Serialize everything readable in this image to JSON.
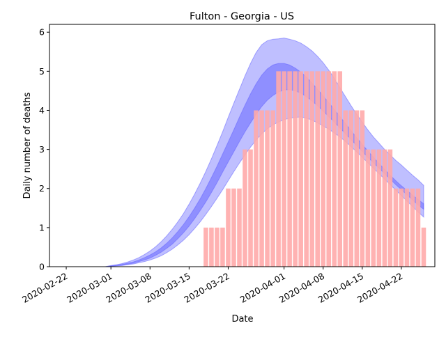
{
  "chart_data": {
    "type": "bar",
    "title": "Fulton - Georgia - US",
    "xlabel": "Date",
    "ylabel": "Daily number of deaths",
    "xlim": [
      "2020-02-19",
      "2020-04-28"
    ],
    "ylim": [
      0,
      6.2
    ],
    "yticks": [
      0,
      1,
      2,
      3,
      4,
      5,
      6
    ],
    "xticks": [
      "2020-02-22",
      "2020-03-01",
      "2020-03-08",
      "2020-03-15",
      "2020-03-22",
      "2020-04-01",
      "2020-04-08",
      "2020-04-15",
      "2020-04-22"
    ],
    "grid": false,
    "legend": "none",
    "colors": {
      "bars": "#ffaaaa",
      "band": "#0000ff",
      "band_edge": "#6666ff"
    },
    "bars": {
      "start_date": "2020-03-18",
      "values": [
        1,
        1,
        1,
        1,
        2,
        2,
        2,
        3,
        3,
        4,
        4,
        4,
        4,
        5,
        5,
        5,
        5,
        5,
        5,
        5,
        5,
        5,
        5,
        5,
        5,
        4,
        4,
        4,
        4,
        3,
        3,
        3,
        3,
        3,
        2,
        2,
        2,
        2,
        2,
        1
      ]
    },
    "bands": {
      "start_date": "2020-02-19",
      "outer": {
        "lower": [
          0,
          0,
          0,
          0,
          0,
          0,
          0,
          0,
          0,
          0,
          0,
          0.01,
          0.02,
          0.03,
          0.05,
          0.07,
          0.1,
          0.13,
          0.17,
          0.22,
          0.28,
          0.36,
          0.45,
          0.56,
          0.68,
          0.82,
          0.98,
          1.15,
          1.34,
          1.54,
          1.75,
          1.97,
          2.2,
          2.43,
          2.65,
          2.86,
          3.06,
          3.24,
          3.4,
          3.53,
          3.63,
          3.7,
          3.76,
          3.8,
          3.82,
          3.83,
          3.8,
          3.75,
          3.68,
          3.6,
          3.52,
          3.42,
          3.32,
          3.2,
          3.07,
          2.94,
          2.8,
          2.66,
          2.52,
          2.38,
          2.24,
          2.1,
          1.96,
          1.82,
          1.68,
          1.54,
          1.4,
          1.27
        ],
        "upper": [
          0,
          0,
          0,
          0,
          0,
          0,
          0,
          0,
          0,
          0,
          0,
          0.03,
          0.05,
          0.08,
          0.12,
          0.17,
          0.23,
          0.31,
          0.4,
          0.51,
          0.64,
          0.79,
          0.96,
          1.15,
          1.36,
          1.6,
          1.86,
          2.14,
          2.44,
          2.76,
          3.1,
          3.45,
          3.82,
          4.18,
          4.53,
          4.88,
          5.2,
          5.48,
          5.68,
          5.78,
          5.82,
          5.83,
          5.85,
          5.82,
          5.78,
          5.72,
          5.63,
          5.52,
          5.38,
          5.22,
          5.03,
          4.82,
          4.58,
          4.35,
          4.12,
          3.9,
          3.7,
          3.5,
          3.32,
          3.16,
          3.0,
          2.86,
          2.72,
          2.6,
          2.47,
          2.34,
          2.22,
          2.08
        ]
      },
      "inner": {
        "lower": [
          0,
          0,
          0,
          0,
          0,
          0,
          0,
          0,
          0,
          0,
          0,
          0.01,
          0.03,
          0.04,
          0.06,
          0.09,
          0.13,
          0.17,
          0.22,
          0.29,
          0.37,
          0.47,
          0.58,
          0.72,
          0.87,
          1.04,
          1.23,
          1.44,
          1.66,
          1.9,
          2.15,
          2.42,
          2.68,
          2.94,
          3.2,
          3.45,
          3.68,
          3.9,
          4.1,
          4.26,
          4.38,
          4.47,
          4.52,
          4.53,
          4.5,
          4.44,
          4.35,
          4.24,
          4.12,
          3.98,
          3.84,
          3.7,
          3.55,
          3.4,
          3.25,
          3.1,
          2.95,
          2.8,
          2.66,
          2.52,
          2.38,
          2.24,
          2.1,
          1.97,
          1.84,
          1.71,
          1.58,
          1.47
        ],
        "upper": [
          0,
          0,
          0,
          0,
          0,
          0,
          0,
          0,
          0,
          0,
          0,
          0.02,
          0.04,
          0.06,
          0.09,
          0.12,
          0.17,
          0.23,
          0.3,
          0.38,
          0.48,
          0.6,
          0.74,
          0.9,
          1.08,
          1.28,
          1.5,
          1.74,
          2.0,
          2.28,
          2.57,
          2.88,
          3.19,
          3.5,
          3.82,
          4.13,
          4.42,
          4.68,
          4.9,
          5.06,
          5.16,
          5.2,
          5.2,
          5.16,
          5.08,
          4.98,
          4.85,
          4.7,
          4.54,
          4.37,
          4.2,
          4.02,
          3.84,
          3.66,
          3.48,
          3.3,
          3.13,
          2.96,
          2.8,
          2.64,
          2.49,
          2.34,
          2.2,
          2.07,
          1.95,
          1.83,
          1.72,
          1.61
        ]
      }
    }
  }
}
